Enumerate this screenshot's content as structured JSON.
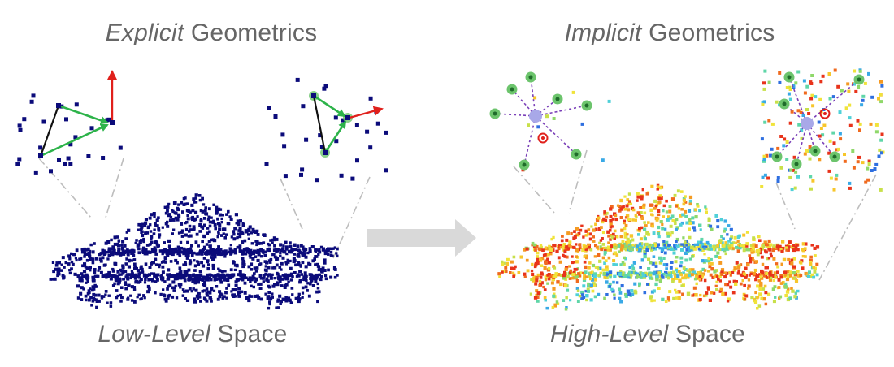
{
  "labels": {
    "explicit_title": {
      "emph": "Explicit",
      "rest": "Geometrics"
    },
    "implicit_title": {
      "emph": "Implicit",
      "rest": "Geometrics"
    },
    "low_level": {
      "emph": "Low-Level",
      "rest": "Space"
    },
    "high_level": {
      "emph": "High-Level",
      "rest": "Space"
    }
  },
  "colors": {
    "low_points": "#0b0b7a",
    "triangle_edge": "#111111",
    "vector_green": "#2db34a",
    "vector_red": "#e0201b",
    "node_green": "#6cc46c",
    "hub": "#a8a8e8",
    "dash_purple": "#7a3fb8",
    "arrow_gray": "#d9d9d9",
    "leader_gray": "#bdbdbd",
    "target_red": "#e0201b"
  },
  "icons": {
    "transform_arrow": "arrow-right-icon"
  }
}
